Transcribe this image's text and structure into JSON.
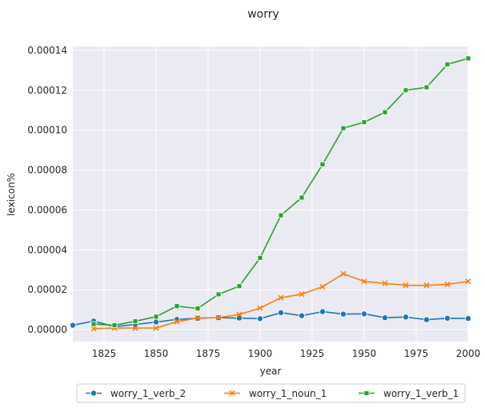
{
  "chart_data": {
    "type": "line",
    "title": "worry",
    "xlabel": "year",
    "ylabel": "lexicon%",
    "xlim": [
      1810,
      2000
    ],
    "ylim": [
      -6e-06,
      0.000142
    ],
    "x_ticks": [
      1825,
      1850,
      1875,
      1900,
      1925,
      1950,
      1975,
      2000
    ],
    "y_ticks": [
      0,
      2e-05,
      4e-05,
      6e-05,
      8e-05,
      0.0001,
      0.00012,
      0.00014
    ],
    "y_tick_labels": [
      "0.00000",
      "0.00002",
      "0.00004",
      "0.00006",
      "0.00008",
      "0.00010",
      "0.00012",
      "0.00014"
    ],
    "grid": true,
    "legend_position": "bottom-center",
    "series": [
      {
        "name": "worry_1_verb_2",
        "color": "#1f77b4",
        "marker": "circle",
        "x": [
          1810,
          1820,
          1830,
          1840,
          1850,
          1860,
          1870,
          1880,
          1890,
          1900,
          1910,
          1920,
          1930,
          1940,
          1950,
          1960,
          1970,
          1980,
          1990,
          2000
        ],
        "y": [
          2.2e-06,
          4.3e-06,
          1.5e-06,
          2.6e-06,
          3.8e-06,
          5.1e-06,
          5.7e-06,
          6e-06,
          5.8e-06,
          5.5e-06,
          8.5e-06,
          7e-06,
          9e-06,
          7.8e-06,
          7.9e-06,
          6e-06,
          6.3e-06,
          5e-06,
          5.7e-06,
          5.6e-06
        ]
      },
      {
        "name": "worry_1_noun_1",
        "color": "#ff7f0e",
        "marker": "x",
        "x": [
          1820,
          1830,
          1840,
          1850,
          1860,
          1870,
          1880,
          1890,
          1900,
          1910,
          1920,
          1930,
          1940,
          1950,
          1960,
          1970,
          1980,
          1990,
          2000
        ],
        "y": [
          5e-07,
          8e-07,
          8e-07,
          8e-07,
          4e-06,
          5.8e-06,
          6e-06,
          7.6e-06,
          1.08e-05,
          1.6e-05,
          1.78e-05,
          2.15e-05,
          2.8e-05,
          2.42e-05,
          2.32e-05,
          2.22e-05,
          2.22e-05,
          2.27e-05,
          2.42e-05
        ]
      },
      {
        "name": "worry_1_verb_1",
        "color": "#2ca02c",
        "marker": "square",
        "x": [
          1820,
          1830,
          1840,
          1850,
          1860,
          1870,
          1880,
          1890,
          1900,
          1910,
          1920,
          1930,
          1940,
          1950,
          1960,
          1970,
          1980,
          1990,
          2000
        ],
        "y": [
          2.8e-06,
          2.2e-06,
          4.2e-06,
          6.5e-06,
          1.18e-05,
          1.06e-05,
          1.77e-05,
          2.18e-05,
          3.6e-05,
          5.73e-05,
          6.62e-05,
          8.28e-05,
          0.000101,
          0.000104,
          0.000109,
          0.00012,
          0.0001215,
          0.000133,
          0.000136
        ]
      }
    ]
  }
}
